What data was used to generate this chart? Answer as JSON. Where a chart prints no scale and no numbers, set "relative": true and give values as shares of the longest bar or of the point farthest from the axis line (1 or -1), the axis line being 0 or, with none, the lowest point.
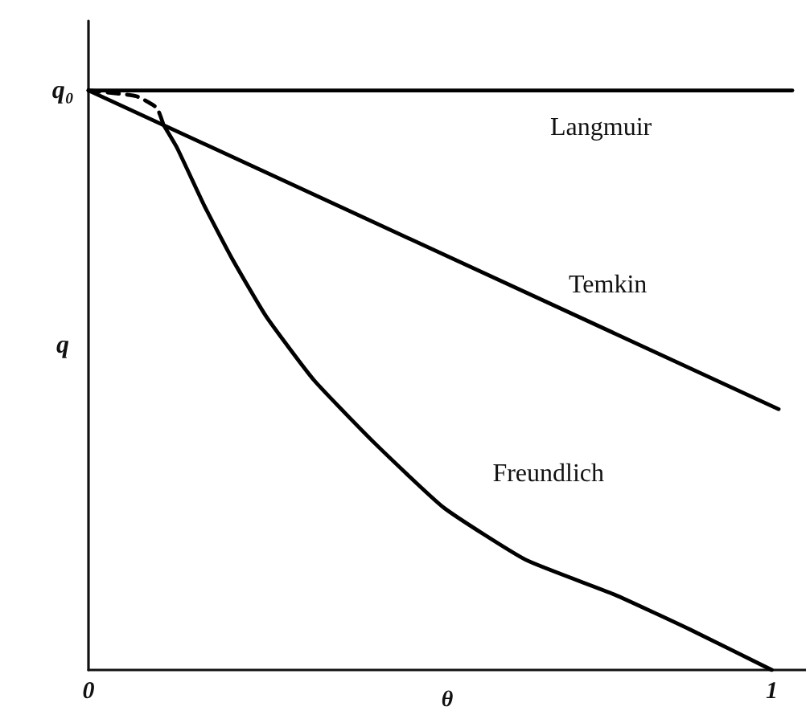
{
  "chart_data": {
    "type": "line",
    "xlabel": "θ",
    "ylabel": "q",
    "relative": true,
    "xlim": [
      0,
      1.05
    ],
    "xticks": [
      0,
      1
    ],
    "grid": false,
    "legend": false,
    "marker": "none",
    "line_style": "solid",
    "annotations": [
      {
        "text": "q₀",
        "x": 0,
        "y": 1
      }
    ],
    "series": [
      {
        "name": "Langmuir",
        "color": "#000000",
        "x": [
          0,
          1.03
        ],
        "values": [
          1,
          1
        ]
      },
      {
        "name": "Temkin",
        "color": "#000000",
        "x": [
          0,
          1.01
        ],
        "values": [
          1,
          0.45
        ]
      },
      {
        "name": "Freundlich",
        "color": "#000000",
        "x": [
          0.11,
          0.13,
          0.17,
          0.21,
          0.26,
          0.33,
          0.42,
          0.52,
          0.64,
          0.77,
          0.88,
          1
        ],
        "values": [
          0.94,
          0.9,
          0.8,
          0.71,
          0.61,
          0.5,
          0.39,
          0.28,
          0.19,
          0.13,
          0.07,
          0
        ]
      },
      {
        "color": "#000000",
        "line_style": "dashed",
        "x": [
          0,
          0.07,
          0.1,
          0.11
        ],
        "values": [
          1,
          0.99,
          0.97,
          0.94
        ]
      }
    ]
  }
}
